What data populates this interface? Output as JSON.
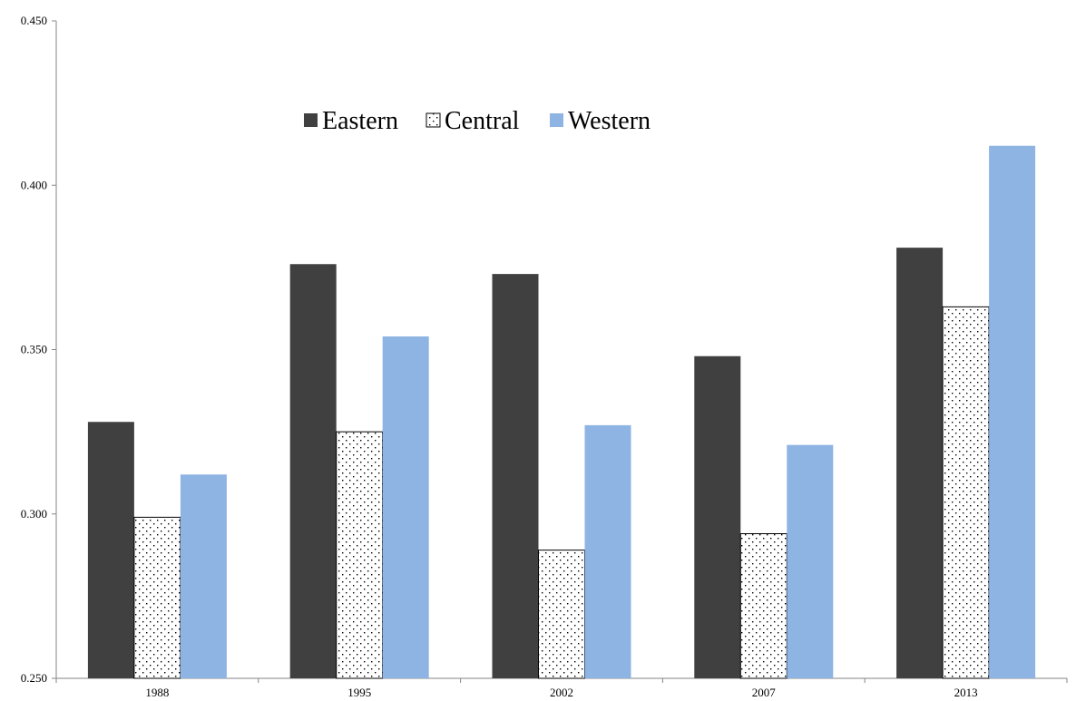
{
  "chart_data": {
    "type": "bar",
    "title": "",
    "xlabel": "",
    "ylabel": "",
    "categories": [
      "1988",
      "1995",
      "2002",
      "2007",
      "2013"
    ],
    "ylim": [
      0.25,
      0.45
    ],
    "yticks": [
      "0.250",
      "0.300",
      "0.350",
      "0.400",
      "0.450"
    ],
    "yticks_values": [
      0.25,
      0.3,
      0.35,
      0.4,
      0.45
    ],
    "grid": false,
    "legend_position": "top-center",
    "series": [
      {
        "name": "Eastern",
        "color": "#404040",
        "pattern": "solid",
        "values": [
          0.328,
          0.376,
          0.373,
          0.348,
          0.381
        ]
      },
      {
        "name": "Central",
        "color": "#ffffff",
        "pattern": "dotted",
        "values": [
          0.299,
          0.325,
          0.289,
          0.294,
          0.363
        ]
      },
      {
        "name": "Western",
        "color": "#8eb4e3",
        "pattern": "solid",
        "values": [
          0.312,
          0.354,
          0.327,
          0.321,
          0.412
        ]
      }
    ]
  }
}
